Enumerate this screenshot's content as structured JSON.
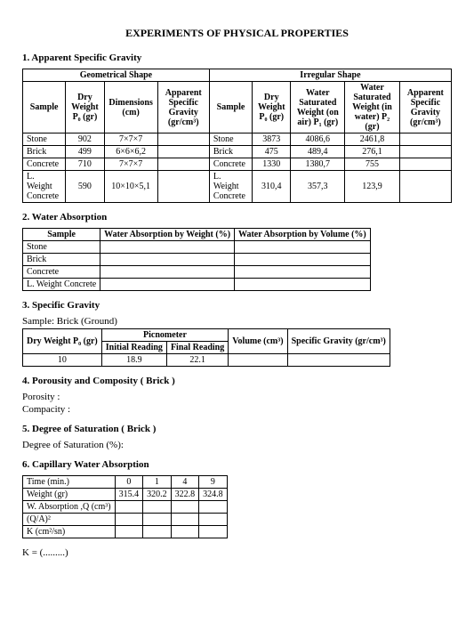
{
  "title": "EXPERIMENTS OF PHYSICAL PROPERTIES",
  "s1": {
    "h": "1. Apparent Specific Gravity",
    "gh": "Geometrical Shape",
    "ih": "Irregular Shape",
    "gcols": [
      "Sample",
      "Dry Weight P₀ (gr)",
      "Dimensions (cm)",
      "Apparent Specific Gravity (gr/cm³)"
    ],
    "icols": [
      "Sample",
      "Dry Weight P₀ (gr)",
      "Water Saturated Weight (on air) P₁ (gr)",
      "Water Saturated Weight (in water) P₂ (gr)",
      "Apparent Specific Gravity (gr/cm³)"
    ],
    "grows": [
      [
        "Stone",
        "902",
        "7×7×7",
        ""
      ],
      [
        "Brick",
        "499",
        "6×6×6,2",
        ""
      ],
      [
        "Concrete",
        "710",
        "7×7×7",
        ""
      ],
      [
        "L. Weight Concrete",
        "590",
        "10×10×5,1",
        ""
      ]
    ],
    "irows": [
      [
        "Stone",
        "3873",
        "4086,6",
        "2461,8",
        ""
      ],
      [
        "Brick",
        "475",
        "489,4",
        "276,1",
        ""
      ],
      [
        "Concrete",
        "1330",
        "1380,7",
        "755",
        ""
      ],
      [
        "L. Weight Concrete",
        "310,4",
        "357,3",
        "123,9",
        ""
      ]
    ]
  },
  "s2": {
    "h": "2. Water Absorption",
    "cols": [
      "Sample",
      "Water Absorption by Weight (%)",
      "Water Absorption by Volume (%)"
    ],
    "rows": [
      [
        "Stone",
        "",
        ""
      ],
      [
        "Brick",
        "",
        ""
      ],
      [
        "Concrete",
        "",
        ""
      ],
      [
        "L. Weight Concrete",
        "",
        ""
      ]
    ]
  },
  "s3": {
    "h": "3. Specific Gravity",
    "sub": "Sample: Brick (Ground)",
    "cols": [
      "Dry Weight P₀ (gr)",
      "Initial Reading",
      "Final Reading",
      "Volume (cm³)",
      "Specific Gravity (gr/cm³)"
    ],
    "pic": "Picnometer",
    "row": [
      "10",
      "18.9",
      "22.1",
      "",
      ""
    ]
  },
  "s4": {
    "h": "4.  Porousity and Composity ( Brick )",
    "a": "Porosity        :",
    "b": "Compacity     :"
  },
  "s5": {
    "h": "5.  Degree of Saturation ( Brick )",
    "a": "Degree of Saturation (%):"
  },
  "s6": {
    "h": "6. Capillary Water Absorption",
    "rows": [
      [
        "Time (min.)",
        "0",
        "1",
        "4",
        "9"
      ],
      [
        "Weight (gr)",
        "315.4",
        "320.2",
        "322.8",
        "324.8"
      ],
      [
        "W. Absorption ,Q (cm³)",
        "",
        "",
        "",
        ""
      ],
      [
        "(Q/A)²",
        "",
        "",
        "",
        ""
      ],
      [
        "K (cm²/sn)",
        "",
        "",
        "",
        ""
      ]
    ],
    "foot": "K = (.........)"
  }
}
